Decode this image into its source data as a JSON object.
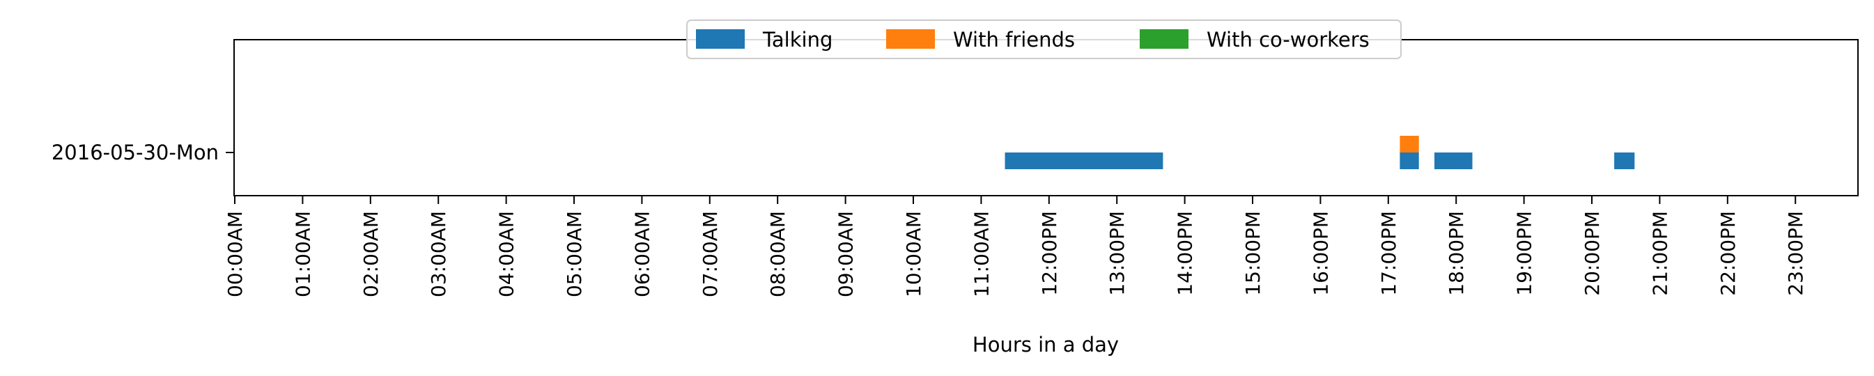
{
  "chart_data": {
    "type": "bar",
    "orientation": "horizontal",
    "title": "",
    "xlabel": "Hours in a day",
    "ylabel": "",
    "xlim": [
      0,
      24
    ],
    "x_unit": "hours",
    "grid": false,
    "legend_position": "top-center",
    "categories": [
      "2016-05-30-Mon"
    ],
    "x_tick_labels": [
      "00:00AM",
      "01:00AM",
      "02:00AM",
      "03:00AM",
      "04:00AM",
      "05:00AM",
      "06:00AM",
      "07:00AM",
      "08:00AM",
      "09:00AM",
      "10:00AM",
      "11:00AM",
      "12:00PM",
      "13:00PM",
      "14:00PM",
      "15:00PM",
      "16:00PM",
      "17:00PM",
      "18:00PM",
      "19:00PM",
      "20:00PM",
      "21:00PM",
      "22:00PM",
      "23:00PM"
    ],
    "series": [
      {
        "name": "Talking",
        "color": "#1f77b4",
        "lane": "lower",
        "intervals": [
          {
            "category": "2016-05-30-Mon",
            "start": 11.35,
            "end": 13.68
          },
          {
            "category": "2016-05-30-Mon",
            "start": 17.17,
            "end": 17.45
          },
          {
            "category": "2016-05-30-Mon",
            "start": 17.68,
            "end": 18.24
          },
          {
            "category": "2016-05-30-Mon",
            "start": 20.33,
            "end": 20.63
          }
        ]
      },
      {
        "name": "With friends",
        "color": "#ff7f0e",
        "lane": "upper",
        "intervals": [
          {
            "category": "2016-05-30-Mon",
            "start": 17.17,
            "end": 17.45
          }
        ]
      },
      {
        "name": "With co-workers",
        "color": "#2ca02c",
        "lane": "upper",
        "intervals": []
      }
    ]
  }
}
